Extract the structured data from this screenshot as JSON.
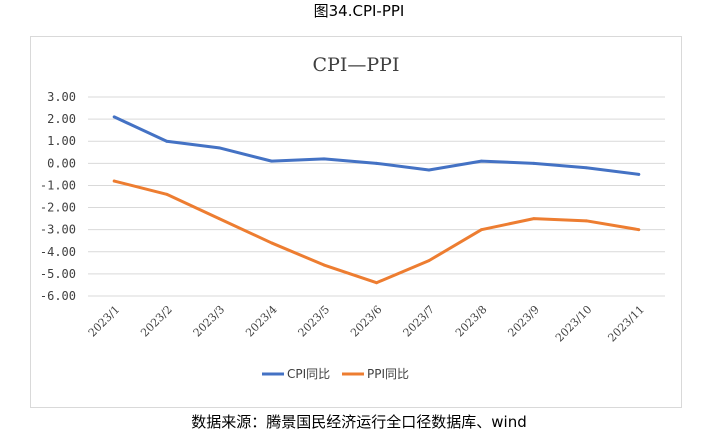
{
  "figure_caption": "图34.CPI-PPI",
  "source_note": "数据来源：腾景国民经济运行全口径数据库、wind",
  "chart_data": {
    "type": "line",
    "title": "CPI—PPI",
    "xlabel": "",
    "ylabel": "",
    "categories": [
      "2023/1",
      "2023/2",
      "2023/3",
      "2023/4",
      "2023/5",
      "2023/6",
      "2023/7",
      "2023/8",
      "2023/9",
      "2023/10",
      "2023/11"
    ],
    "y_ticks": [
      "3.00",
      "2.00",
      "1.00",
      "0.00",
      "-1.00",
      "-2.00",
      "-3.00",
      "-4.00",
      "-5.00",
      "-6.00"
    ],
    "ylim": [
      -6,
      3
    ],
    "grid": true,
    "legend_position": "bottom",
    "series": [
      {
        "name": "CPI同比",
        "color": "#4472C4",
        "values": [
          2.1,
          1.0,
          0.7,
          0.1,
          0.2,
          0.0,
          -0.3,
          0.1,
          0.0,
          -0.2,
          -0.5
        ]
      },
      {
        "name": "PPI同比",
        "color": "#ED7D31",
        "values": [
          -0.8,
          -1.4,
          -2.5,
          -3.6,
          -4.6,
          -5.4,
          -4.4,
          -3.0,
          -2.5,
          -2.6,
          -3.0
        ]
      }
    ]
  }
}
